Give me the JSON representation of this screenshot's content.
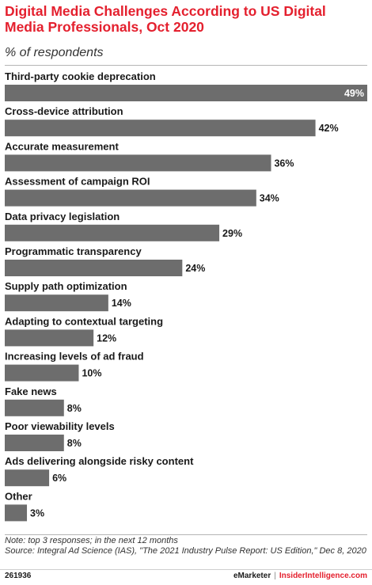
{
  "header": {
    "title": "Digital Media Challenges According to US Digital Media Professionals, Oct 2020",
    "subtitle": "% of respondents"
  },
  "chart_data": {
    "type": "bar",
    "orientation": "horizontal",
    "categories": [
      "Third-party cookie deprecation",
      "Cross-device attribution",
      "Accurate measurement",
      "Assessment of campaign ROI",
      "Data privacy legislation",
      "Programmatic transparency",
      "Supply path optimization",
      "Adapting to contextual targeting",
      "Increasing levels of ad fraud",
      "Fake news",
      "Poor viewability levels",
      "Ads delivering alongside risky content",
      "Other"
    ],
    "values": [
      49,
      42,
      36,
      34,
      29,
      24,
      14,
      12,
      10,
      8,
      8,
      6,
      3
    ],
    "value_labels": [
      "49%",
      "42%",
      "36%",
      "34%",
      "29%",
      "24%",
      "14%",
      "12%",
      "10%",
      "8%",
      "8%",
      "6%",
      "3%"
    ],
    "xlim": [
      0,
      49
    ],
    "bar_color": "#6d6d6d",
    "grid": false,
    "legend": "none"
  },
  "footer": {
    "note": "Note: top 3 responses; in the next 12 months",
    "source": "Source: Integral Ad Science (IAS), \"The 2021 Industry Pulse Report: US Edition,\" Dec 8, 2020",
    "chart_id": "261936",
    "brand_emarketer": "eMarketer",
    "brand_separator": "|",
    "brand_insider": "InsiderIntelligence.com"
  }
}
